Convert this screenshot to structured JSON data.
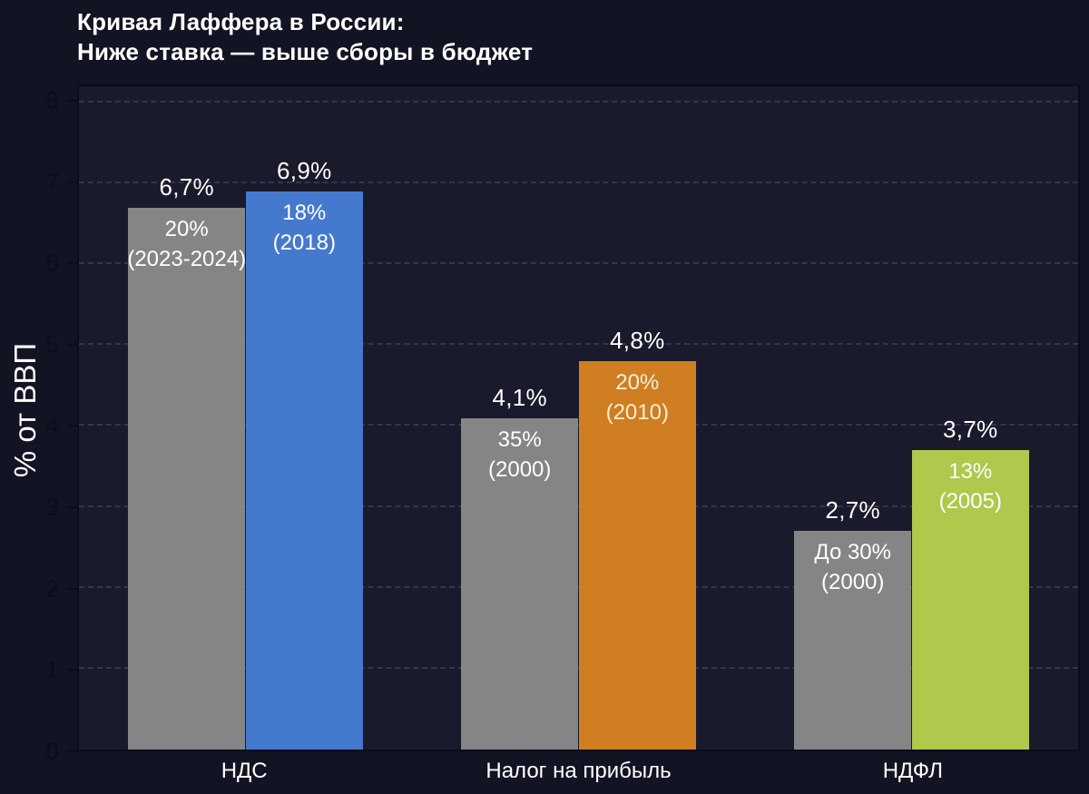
{
  "title": {
    "line1": "Кривая Лаффера в России:",
    "line2": "Ниже ставка — выше сборы в бюджет"
  },
  "chart_data": {
    "type": "bar",
    "title": "Кривая Лаффера в России: Ниже ставка — выше сборы в бюджет",
    "ylabel": "% от ВВП",
    "xlabel": "",
    "ylim": [
      0,
      8.2
    ],
    "yticks": [
      0,
      1,
      2,
      3,
      4,
      5,
      6,
      7,
      8
    ],
    "grid": "horizontal-dashed",
    "legend": "none",
    "categories": [
      "НДС",
      "Налог на прибыль",
      "НДФЛ"
    ],
    "series": [
      {
        "name": "higher_rate",
        "color": "#858585",
        "values": [
          6.7,
          4.1,
          2.7
        ],
        "value_labels": [
          "6,7%",
          "4,1%",
          "2,7%"
        ],
        "annotations": [
          [
            "20%",
            "(2023-2024)"
          ],
          [
            "35%",
            "(2000)"
          ],
          [
            "До 30%",
            "(2000)"
          ]
        ],
        "annotation_colors": [
          "#ffffff",
          "#ffffff",
          "#ffffff"
        ]
      },
      {
        "name": "lower_rate",
        "colors": [
          "#4579ce",
          "#cf7e22",
          "#aec94c"
        ],
        "values": [
          6.9,
          4.8,
          3.7
        ],
        "value_labels": [
          "6,9%",
          "4,8%",
          "3,7%"
        ],
        "annotations": [
          [
            "18%",
            "(2018)"
          ],
          [
            "20%",
            "(2010)"
          ],
          [
            "13%",
            "(2005)"
          ]
        ],
        "annotation_colors": [
          "#ffffff",
          "#f8eed8",
          "#ffffff"
        ]
      }
    ],
    "colors": {
      "background": "#121424",
      "plot_background": "#191a2b",
      "gray_bar": "#858585",
      "blue_bar": "#4579ce",
      "orange_bar": "#cf7e22",
      "green_bar": "#aec94c",
      "text": "#ffffff",
      "tick_text": "#0b0d18"
    }
  }
}
